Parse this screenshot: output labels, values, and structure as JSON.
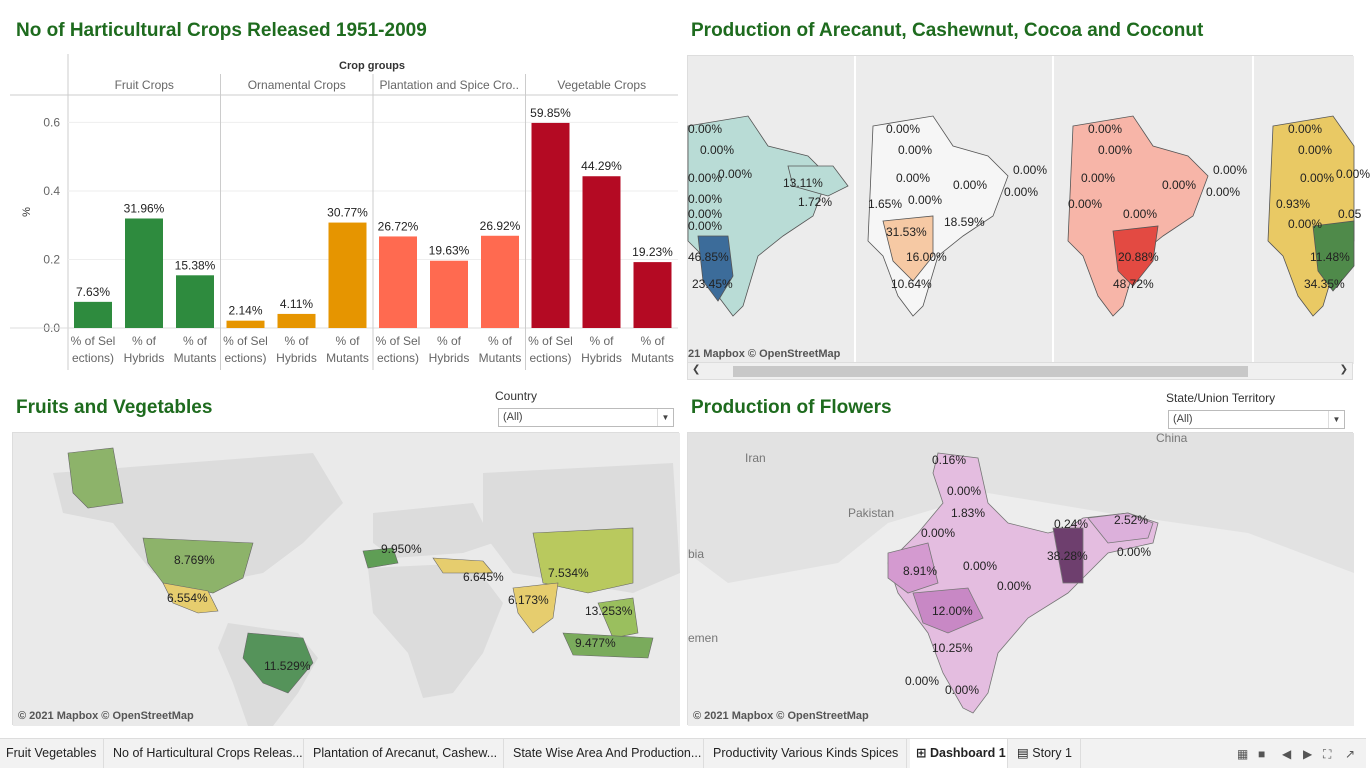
{
  "panels": {
    "crops_title": "No of Harticultural Crops Released 1951-2009",
    "arecanut_title": "Production of Arecanut, Cashewnut, Cocoa and Coconut",
    "fruits_title": "Fruits and Vegetables",
    "flowers_title": "Production of Flowers"
  },
  "chart_data": {
    "type": "bar",
    "header": "Crop groups",
    "ylabel": "%",
    "ylim": [
      0,
      0.68
    ],
    "yticks": [
      "0.0",
      "0.2",
      "0.4",
      "0.6"
    ],
    "groups": [
      "Fruit Crops",
      "Ornamental Crops",
      "Plantation and Spice Cro..",
      "Vegetable Crops"
    ],
    "categories": [
      "% of Selections)",
      "% of Hybrids",
      "% of Mutants"
    ],
    "category_lines": [
      [
        "% of Sel",
        "ections)"
      ],
      [
        "% of",
        "Hybrids"
      ],
      [
        "% of",
        "Mutants"
      ]
    ],
    "colors": [
      "#2e8b3e",
      "#e69500",
      "#ff6a50",
      "#b40a23"
    ],
    "series": [
      {
        "group": "Fruit Crops",
        "values": [
          0.0763,
          0.3196,
          0.1538
        ],
        "labels": [
          "7.63%",
          "31.96%",
          "15.38%"
        ]
      },
      {
        "group": "Ornamental Crops",
        "values": [
          0.0214,
          0.0411,
          0.3077
        ],
        "labels": [
          "2.14%",
          "4.11%",
          "30.77%"
        ]
      },
      {
        "group": "Plantation and Spice Cro..",
        "values": [
          0.2672,
          0.1963,
          0.2692
        ],
        "labels": [
          "26.72%",
          "19.63%",
          "26.92%"
        ]
      },
      {
        "group": "Vegetable Crops",
        "values": [
          0.5985,
          0.4429,
          0.1923
        ],
        "labels": [
          "59.85%",
          "44.29%",
          "19.23%"
        ]
      }
    ]
  },
  "arecanut_map": {
    "labels": [
      "0.00%",
      "0.00%",
      "0.00%",
      "0.00%",
      "0.00%",
      "13.11%",
      "1.72%",
      "0.00%",
      "0.00%",
      "46.85%",
      "23.45%",
      "0.00%",
      "0.00%",
      "0.00%",
      "0.00%",
      "0.00%",
      "0.00%",
      "1.65%",
      "0.00%",
      "31.53%",
      "18.59%",
      "16.00%",
      "10.64%",
      "0.00%",
      "0.00%",
      "0.00%",
      "0.00%",
      "0.00%",
      "0.00%",
      "0.00%",
      "0.00%",
      "20.88%",
      "48.72%",
      "0.00%",
      "0.00%",
      "0.00%",
      "0.00%",
      "0.93%",
      "0.00%",
      "11.48%",
      "34.35%",
      "0.05"
    ],
    "attribution": "21 Mapbox © OpenStreetMap"
  },
  "fruits_map": {
    "filter_label": "Country",
    "filter_value": "(All)",
    "labels": [
      "8.769%",
      "6.554%",
      "11.529%",
      "9.950%",
      "6.645%",
      "7.534%",
      "6.173%",
      "13.253%",
      "9.477%"
    ],
    "attribution": "© 2021 Mapbox © OpenStreetMap"
  },
  "flowers_map": {
    "filter_label": "State/Union Territory",
    "filter_value": "(All)",
    "places": [
      "China",
      "Iran",
      "Pakistan",
      "bia",
      "emen"
    ],
    "labels": [
      "0.16%",
      "0.00%",
      "1.83%",
      "0.00%",
      "0.24%",
      "2.52%",
      "38.28%",
      "0.00%",
      "0.00%",
      "0.00%",
      "8.91%",
      "12.00%",
      "10.25%",
      "0.00%",
      "0.00%"
    ],
    "attribution": "© 2021 Mapbox © OpenStreetMap"
  },
  "tabs": [
    "Fruit Vegetables",
    "No of Harticultural Crops Releas...",
    "Plantation of Arecanut, Cashew...",
    "State Wise Area And Production...",
    "Productivity Various Kinds Spices",
    "Dashboard 1",
    "Story 1"
  ],
  "icons": [
    "grid-icon",
    "square-icon",
    "prev-icon",
    "next-icon",
    "fullscreen-icon",
    "share-icon"
  ]
}
